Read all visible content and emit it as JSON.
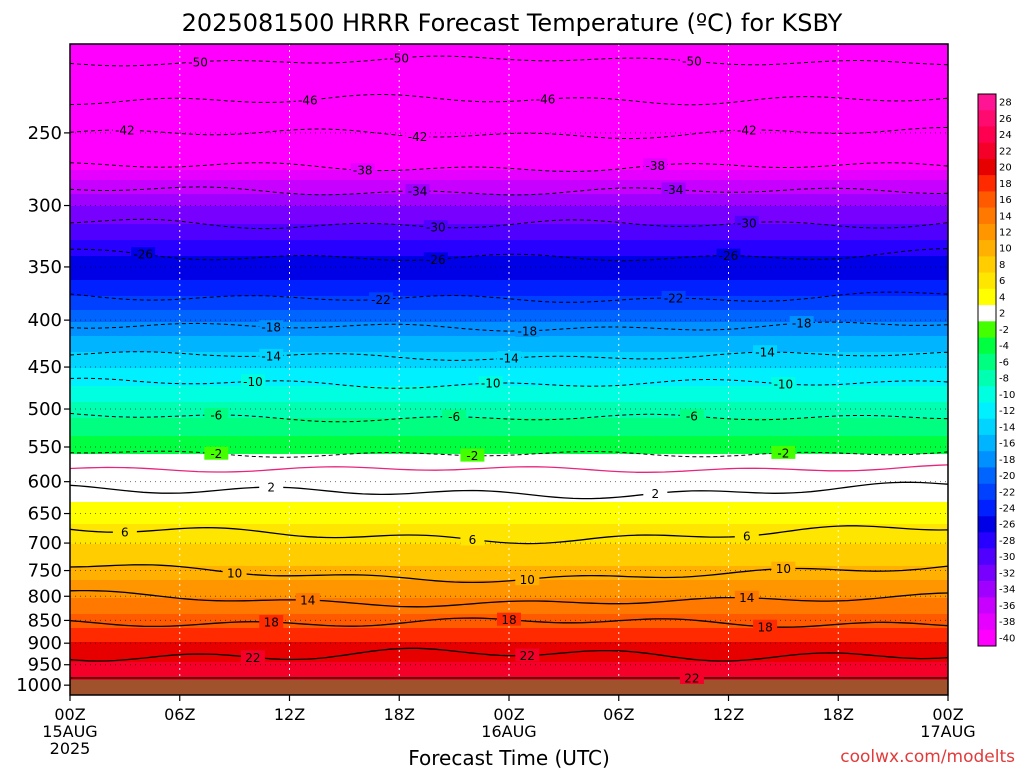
{
  "chart_data": {
    "type": "heatmap",
    "title": "2025081500 HRRR Forecast Temperature (ºC) for KSBY",
    "xlabel": "Forecast Time (UTC)",
    "ylabel": "",
    "credit": "coolwx.com/modelts",
    "x_range_hours": [
      0,
      48
    ],
    "y_range_hpa": [
      200,
      1025
    ],
    "y_scale": "log",
    "x_ticks": [
      {
        "hour": 0,
        "label": "00Z",
        "sub": [
          "15AUG",
          "2025"
        ]
      },
      {
        "hour": 6,
        "label": "06Z",
        "sub": []
      },
      {
        "hour": 12,
        "label": "12Z",
        "sub": []
      },
      {
        "hour": 18,
        "label": "18Z",
        "sub": []
      },
      {
        "hour": 24,
        "label": "00Z",
        "sub": [
          "16AUG"
        ]
      },
      {
        "hour": 30,
        "label": "06Z",
        "sub": []
      },
      {
        "hour": 36,
        "label": "12Z",
        "sub": []
      },
      {
        "hour": 42,
        "label": "18Z",
        "sub": []
      },
      {
        "hour": 48,
        "label": "00Z",
        "sub": [
          "17AUG"
        ]
      }
    ],
    "y_ticks": [
      {
        "p": 250,
        "label": "250"
      },
      {
        "p": 300,
        "label": "300"
      },
      {
        "p": 350,
        "label": "350"
      },
      {
        "p": 400,
        "label": "400"
      },
      {
        "p": 450,
        "label": "450"
      },
      {
        "p": 500,
        "label": "500"
      },
      {
        "p": 550,
        "label": "550"
      },
      {
        "p": 600,
        "label": "600"
      },
      {
        "p": 650,
        "label": "650"
      },
      {
        "p": 700,
        "label": "700"
      },
      {
        "p": 750,
        "label": "750"
      },
      {
        "p": 800,
        "label": "800"
      },
      {
        "p": 850,
        "label": "850"
      },
      {
        "p": 900,
        "label": "900"
      },
      {
        "p": 950,
        "label": "950"
      },
      {
        "p": 1000,
        "label": "1000"
      }
    ],
    "temperature_profile_hpa_c": [
      [
        200,
        -53
      ],
      [
        210,
        -51
      ],
      [
        230,
        -47
      ],
      [
        250,
        -43
      ],
      [
        270,
        -39
      ],
      [
        285,
        -35
      ],
      [
        300,
        -32
      ],
      [
        320,
        -29
      ],
      [
        340,
        -26
      ],
      [
        360,
        -24
      ],
      [
        380,
        -21.5
      ],
      [
        400,
        -18
      ],
      [
        420,
        -15.5
      ],
      [
        440,
        -13
      ],
      [
        460,
        -11
      ],
      [
        480,
        -9
      ],
      [
        500,
        -7
      ],
      [
        520,
        -5
      ],
      [
        540,
        -3.5
      ],
      [
        558,
        -2
      ],
      [
        575,
        0
      ],
      [
        590,
        1
      ],
      [
        600,
        2
      ],
      [
        620,
        3.5
      ],
      [
        650,
        5
      ],
      [
        680,
        7
      ],
      [
        700,
        8
      ],
      [
        740,
        10
      ],
      [
        780,
        13
      ],
      [
        820,
        15
      ],
      [
        850,
        17
      ],
      [
        880,
        19
      ],
      [
        910,
        21
      ],
      [
        940,
        22
      ],
      [
        980,
        23
      ],
      [
        1025,
        24
      ]
    ],
    "contours": [
      {
        "value": -50,
        "label": "-50",
        "dashed": true,
        "color": "#000000",
        "p0": 210,
        "slope": -2,
        "amp": 2,
        "labels_at": [
          7,
          18,
          34
        ]
      },
      {
        "value": -46,
        "label": "-46",
        "dashed": true,
        "color": "#000000",
        "p0": 230,
        "slope": 0,
        "amp": 3,
        "labels_at": [
          13,
          26
        ]
      },
      {
        "value": -42,
        "label": "-42",
        "dashed": true,
        "color": "#000000",
        "p0": 249,
        "slope": 2,
        "amp": 3,
        "labels_at": [
          3,
          19,
          37
        ]
      },
      {
        "value": -38,
        "label": "-38",
        "dashed": true,
        "color": "#000000",
        "p0": 271,
        "slope": 2,
        "amp": 3,
        "labels_at": [
          16,
          32
        ]
      },
      {
        "value": -34,
        "label": "-34",
        "dashed": true,
        "color": "#000000",
        "p0": 288,
        "slope": 2,
        "amp": 3,
        "labels_at": [
          19,
          33
        ]
      },
      {
        "value": -30,
        "label": "-30",
        "dashed": true,
        "color": "#000000",
        "p0": 313,
        "slope": 2,
        "amp": 4,
        "labels_at": [
          20,
          37
        ]
      },
      {
        "value": -26,
        "label": "-26",
        "dashed": true,
        "color": "#000000",
        "p0": 337,
        "slope": 6,
        "amp": 4,
        "labels_at": [
          4,
          20,
          36
        ]
      },
      {
        "value": -22,
        "label": "-22",
        "dashed": true,
        "color": "#000000",
        "p0": 375,
        "slope": 5,
        "amp": 4,
        "labels_at": [
          17,
          33
        ]
      },
      {
        "value": -18,
        "label": "-18",
        "dashed": true,
        "color": "#000000",
        "p0": 404,
        "slope": 4,
        "amp": 4,
        "labels_at": [
          11,
          25,
          40
        ]
      },
      {
        "value": -14,
        "label": "-14",
        "dashed": true,
        "color": "#000000",
        "p0": 435,
        "slope": 4,
        "amp": 4,
        "labels_at": [
          11,
          24,
          38
        ]
      },
      {
        "value": -10,
        "label": "-10",
        "dashed": true,
        "color": "#000000",
        "p0": 467,
        "slope": 3,
        "amp": 5,
        "labels_at": [
          10,
          23,
          39
        ]
      },
      {
        "value": -6,
        "label": "-6",
        "dashed": true,
        "color": "#000000",
        "p0": 508,
        "slope": 4,
        "amp": 5,
        "labels_at": [
          8,
          21,
          34
        ]
      },
      {
        "value": -2,
        "label": "-2",
        "dashed": true,
        "color": "#000000",
        "p0": 556,
        "slope": 5,
        "amp": 5,
        "labels_at": [
          8,
          22,
          39
        ]
      },
      {
        "value": 0,
        "label": "",
        "dashed": false,
        "color": "#e8257c",
        "p0": 580,
        "slope": 2,
        "amp": 5,
        "labels_at": []
      },
      {
        "value": 2,
        "label": "2",
        "dashed": false,
        "color": "#000000",
        "p0": 607,
        "slope": 12,
        "amp": 8,
        "labels_at": [
          11,
          32
        ]
      },
      {
        "value": 6,
        "label": "6",
        "dashed": false,
        "color": "#000000",
        "p0": 672,
        "slope": 20,
        "amp": 9,
        "labels_at": [
          3,
          22,
          37
        ]
      },
      {
        "value": 10,
        "label": "10",
        "dashed": false,
        "color": "#000000",
        "p0": 740,
        "slope": 25,
        "amp": 8,
        "labels_at": [
          9,
          25,
          39
        ]
      },
      {
        "value": 14,
        "label": "14",
        "dashed": false,
        "color": "#000000",
        "p0": 795,
        "slope": 20,
        "amp": 8,
        "labels_at": [
          13,
          37
        ]
      },
      {
        "value": 18,
        "label": "18",
        "dashed": false,
        "color": "#000000",
        "p0": 858,
        "slope": -5,
        "amp": 10,
        "labels_at": [
          11,
          24,
          38
        ]
      },
      {
        "value": 22,
        "label": "22",
        "dashed": false,
        "color": "#000000",
        "p0": 930,
        "slope": -5,
        "amp": 15,
        "labels_at": [
          10,
          25
        ]
      },
      {
        "value": 22,
        "label": "22",
        "dashed": false,
        "color": "#000000",
        "p0": 1005,
        "slope": -12,
        "amp": 12,
        "labels_at": [
          34
        ]
      }
    ],
    "colorbar": {
      "labels": [
        "28",
        "26",
        "24",
        "22",
        "20",
        "18",
        "16",
        "14",
        "12",
        "10",
        "8",
        "6",
        "4",
        "2",
        "-2",
        "-4",
        "-6",
        "-8",
        "-10",
        "-12",
        "-14",
        "-16",
        "-18",
        "-20",
        "-22",
        "-24",
        "-26",
        "-28",
        "-30",
        "-32",
        "-34",
        "-36",
        "-38",
        "-40"
      ],
      "colors": [
        "#ff1493",
        "#ff0a6e",
        "#ff0050",
        "#f50028",
        "#e60000",
        "#ff2a00",
        "#ff5a00",
        "#ff7800",
        "#ff9600",
        "#ffb000",
        "#ffcd00",
        "#ffe600",
        "#ffff00",
        "#ffffff",
        "#44ff00",
        "#00ff40",
        "#00ff80",
        "#00ffb0",
        "#00ffe0",
        "#00f0ff",
        "#00d4ff",
        "#00b4ff",
        "#0090ff",
        "#0064ff",
        "#0040ff",
        "#0020ff",
        "#0000e6",
        "#2800ff",
        "#5000ff",
        "#7800ff",
        "#a000ff",
        "#c800ff",
        "#e600ff",
        "#ff00ff"
      ]
    },
    "ground_color": "#a0522d",
    "grid": true
  }
}
